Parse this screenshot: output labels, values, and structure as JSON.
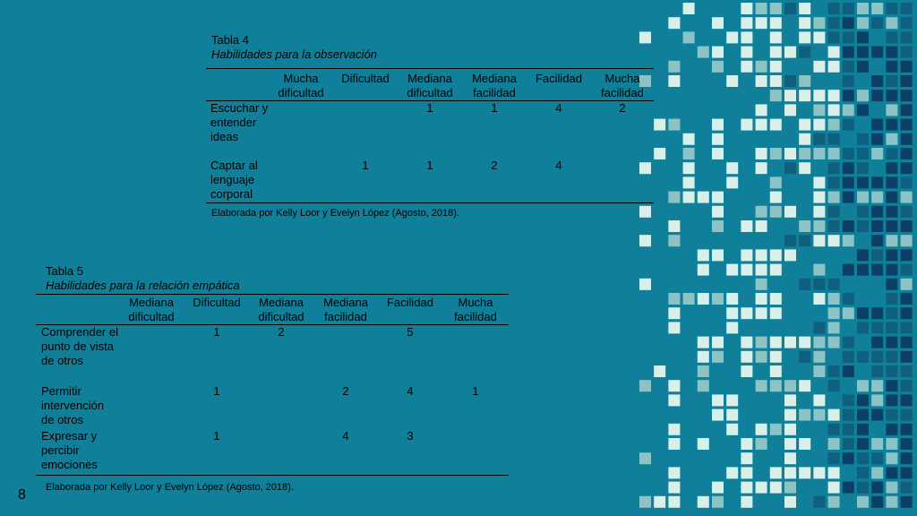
{
  "table4": {
    "number": "Tabla 4",
    "title": "Habilidades para la observación",
    "headers": [
      "",
      "Mucha dificultad",
      "Dificultad",
      "Mediana dificultad",
      "Mediana facilidad",
      "Facilidad",
      "Mucha facilidad"
    ],
    "rows": [
      {
        "label": "Escuchar y entender ideas",
        "cells": [
          "",
          "",
          "1",
          "1",
          "4",
          "2"
        ]
      },
      {
        "label": "Captar al lenguaje corporal",
        "cells": [
          "",
          "1",
          "1",
          "2",
          "4",
          ""
        ]
      }
    ],
    "note": "Elaborada por Kelly Loor y Evelyn López (Agosto, 2018)."
  },
  "table5": {
    "number": "Tabla 5",
    "title": "Habilidades para la relación empática",
    "headers": [
      "",
      "Mediana dificultad",
      "Dificultad",
      "Mediana dificultad",
      "Mediana facilidad",
      "Facilidad",
      "Mucha facilidad"
    ],
    "rows": [
      {
        "label": "Comprender el punto de vista de otros",
        "cells": [
          "",
          "1",
          "2",
          "",
          "5",
          ""
        ]
      },
      {
        "label": "Permitir intervención de otros",
        "cells": [
          "",
          "1",
          "",
          "2",
          "4",
          "1"
        ]
      },
      {
        "label": "Expresar y percibir emociones",
        "cells": [
          "",
          "1",
          "",
          "4",
          "3",
          ""
        ]
      }
    ],
    "note": "Elaborada por Kelly Loor y Evelyn López (Agosto, 2018)."
  },
  "page_number": "8",
  "colors": {
    "background": "#10809a",
    "tile_light": "#d9efe9",
    "tile_mid": "#8cc4c6",
    "tile_dark": "#0f5f7e",
    "tile_navy": "#0b3f66"
  }
}
